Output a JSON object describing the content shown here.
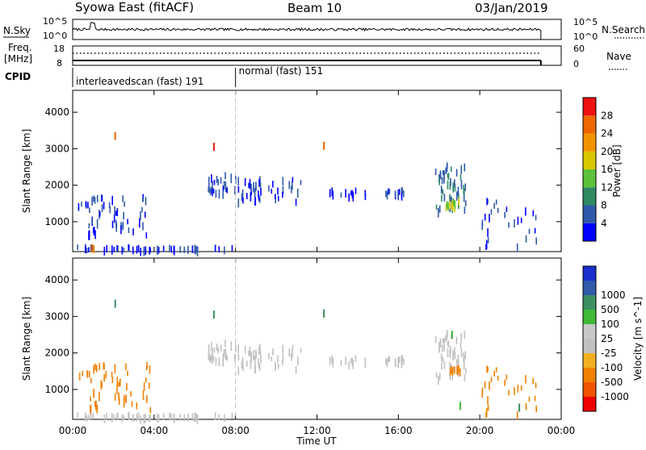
{
  "header": {
    "station": "Syowa East (fitACF)",
    "beam": "Beam 10",
    "date": "03/Jan/2019"
  },
  "status_panels": {
    "nsky_label": "N.Sky",
    "nsearch_label": "N.Search",
    "nsky_ticks": [
      "10^5",
      "10^0"
    ],
    "nsearch_ticks": [
      "10^5",
      "10^0"
    ],
    "freq_label_line1": "Freq.",
    "freq_label_line2": "[MHz]",
    "freq_ticks": [
      "18",
      "8"
    ],
    "nave_label": "Nave",
    "nave_ticks": [
      "60",
      "0"
    ],
    "cpid_label": "CPID",
    "cpid_segments": [
      {
        "label": "interleavedscan (fast) 191",
        "start_hour": 0,
        "end_hour": 8
      },
      {
        "label": "normal (fast) 151",
        "start_hour": 8,
        "end_hour": 24
      }
    ]
  },
  "x_axis": {
    "title": "Time UT",
    "range_hours": [
      0,
      24
    ],
    "ticks": [
      {
        "label": "00:00",
        "hour": 0
      },
      {
        "label": "04:00",
        "hour": 4
      },
      {
        "label": "08:00",
        "hour": 8
      },
      {
        "label": "12:00",
        "hour": 12
      },
      {
        "label": "16:00",
        "hour": 16
      },
      {
        "label": "20:00",
        "hour": 20
      },
      {
        "label": "00:00",
        "hour": 24
      }
    ],
    "data_end_hour": 23.0
  },
  "y_axis": {
    "title": "Slant Range [km]",
    "range_km": [
      180,
      4600
    ],
    "ticks": [
      1000,
      2000,
      3000,
      4000
    ]
  },
  "power_scale": {
    "title": "Power [dB]",
    "bands": [
      {
        "label": "",
        "color": "#0000ff"
      },
      {
        "label": "4",
        "color": "#2f5aa8"
      },
      {
        "label": "8",
        "color": "#2f8a63"
      },
      {
        "label": "12",
        "color": "#5cc23a"
      },
      {
        "label": "16",
        "color": "#d9c800"
      },
      {
        "label": "20",
        "color": "#f29400"
      },
      {
        "label": "24",
        "color": "#ee6600"
      },
      {
        "label": "28",
        "color": "#ee1111"
      }
    ]
  },
  "velocity_scale": {
    "title": "Velocity [m s^-1]",
    "bands": [
      {
        "label": "",
        "color": "#ee0000"
      },
      {
        "label": "-1000",
        "color": "#f05500"
      },
      {
        "label": "-500",
        "color": "#f08000"
      },
      {
        "label": "-100",
        "color": "#f0b020"
      },
      {
        "label": "-25",
        "color": "#c0c0c0"
      },
      {
        "label": "25",
        "color": "#c8c8c8"
      },
      {
        "label": "100",
        "color": "#40b838"
      },
      {
        "label": "500",
        "color": "#3b8f60"
      },
      {
        "label": "1000",
        "color": "#2f5aa8"
      },
      {
        "label": "",
        "color": "#1a2fcc"
      }
    ]
  },
  "chart_data": {
    "type": "heatmap",
    "panels": [
      {
        "name": "Power",
        "clusters": [
          {
            "t0": 0.25,
            "t1": 3.6,
            "r0": 600,
            "r1": 1700,
            "n": 55,
            "power": 4
          },
          {
            "t0": 0.2,
            "t1": 8.0,
            "r0": 220,
            "r1": 320,
            "n": 45,
            "power": 4
          },
          {
            "t0": 6.5,
            "t1": 8.0,
            "r0": 1750,
            "r1": 2300,
            "n": 25,
            "power": 4
          },
          {
            "t0": 8.0,
            "t1": 11.2,
            "r0": 1550,
            "r1": 2200,
            "n": 45,
            "power": 4
          },
          {
            "t0": 15.0,
            "t1": 16.3,
            "r0": 1750,
            "r1": 1900,
            "n": 14,
            "power": 4
          },
          {
            "t0": 17.8,
            "t1": 19.3,
            "r0": 1300,
            "r1": 2600,
            "n": 50,
            "power": 8
          },
          {
            "t0": 18.3,
            "t1": 19.0,
            "r0": 1400,
            "r1": 1700,
            "n": 14,
            "power": 16
          },
          {
            "t0": 19.8,
            "t1": 22.8,
            "r0": 300,
            "r1": 1600,
            "n": 28,
            "power": 4
          },
          {
            "t0": 12.0,
            "t1": 14.5,
            "r0": 1700,
            "r1": 1900,
            "n": 12,
            "power": 4
          }
        ],
        "points": [
          {
            "t": 2.05,
            "r": 3350,
            "power": 24
          },
          {
            "t": 6.9,
            "r": 3050,
            "power": 28
          },
          {
            "t": 12.3,
            "r": 3080,
            "power": 24
          },
          {
            "t": 0.9,
            "r": 270,
            "power": 24
          },
          {
            "t": 1.0,
            "r": 250,
            "power": 20
          }
        ]
      },
      {
        "name": "Velocity",
        "clusters": [
          {
            "t0": 0.3,
            "t1": 3.8,
            "r0": 400,
            "r1": 1700,
            "n": 55,
            "velocity": -300
          },
          {
            "t0": 0.2,
            "t1": 8.0,
            "r0": 220,
            "r1": 320,
            "n": 45,
            "velocity": 0
          },
          {
            "t0": 6.5,
            "t1": 8.0,
            "r0": 1750,
            "r1": 2300,
            "n": 25,
            "velocity": 0
          },
          {
            "t0": 8.0,
            "t1": 11.2,
            "r0": 1550,
            "r1": 2200,
            "n": 45,
            "velocity": 0
          },
          {
            "t0": 15.0,
            "t1": 16.3,
            "r0": 1750,
            "r1": 1900,
            "n": 14,
            "velocity": 0
          },
          {
            "t0": 17.8,
            "t1": 19.3,
            "r0": 1300,
            "r1": 2600,
            "n": 50,
            "velocity": 0
          },
          {
            "t0": 18.5,
            "t1": 19.3,
            "r0": 1500,
            "r1": 1700,
            "n": 10,
            "velocity": -400
          },
          {
            "t0": 19.8,
            "t1": 22.8,
            "r0": 300,
            "r1": 1600,
            "n": 28,
            "velocity": -150
          },
          {
            "t0": 12.0,
            "t1": 14.5,
            "r0": 1700,
            "r1": 1900,
            "n": 12,
            "velocity": 0
          }
        ],
        "points": [
          {
            "t": 2.05,
            "r": 3350,
            "velocity": 600
          },
          {
            "t": 6.9,
            "r": 3050,
            "velocity": 600
          },
          {
            "t": 12.3,
            "r": 3080,
            "velocity": 600
          },
          {
            "t": 18.6,
            "r": 2500,
            "velocity": 150
          },
          {
            "t": 19.0,
            "r": 550,
            "velocity": 150
          },
          {
            "t": 21.9,
            "r": 500,
            "velocity": 800
          }
        ]
      }
    ]
  }
}
